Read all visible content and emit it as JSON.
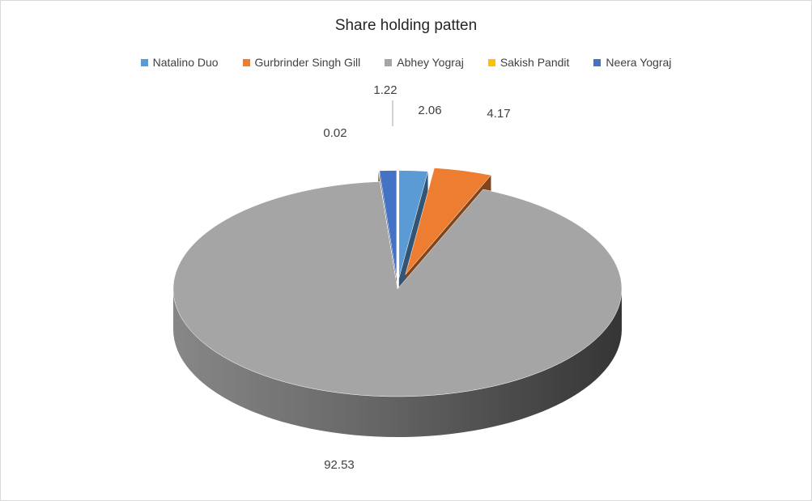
{
  "chart_data": {
    "type": "pie",
    "title": "Share holding patten",
    "legend_position": "top",
    "style": "3d-exploded",
    "categories": [
      "Natalino Duo",
      "Gurbrinder Singh Gill",
      "Abhey Yograj",
      "Sakish Pandit",
      "Neera Yograj"
    ],
    "values": [
      2.06,
      4.17,
      92.53,
      0.02,
      1.22
    ],
    "data_labels": [
      "2.06",
      "4.17",
      "92.53",
      "0.02",
      "1.22"
    ],
    "colors": [
      "#5b9bd5",
      "#ed7d31",
      "#a5a5a5",
      "#ffc000",
      "#4472c4"
    ]
  }
}
